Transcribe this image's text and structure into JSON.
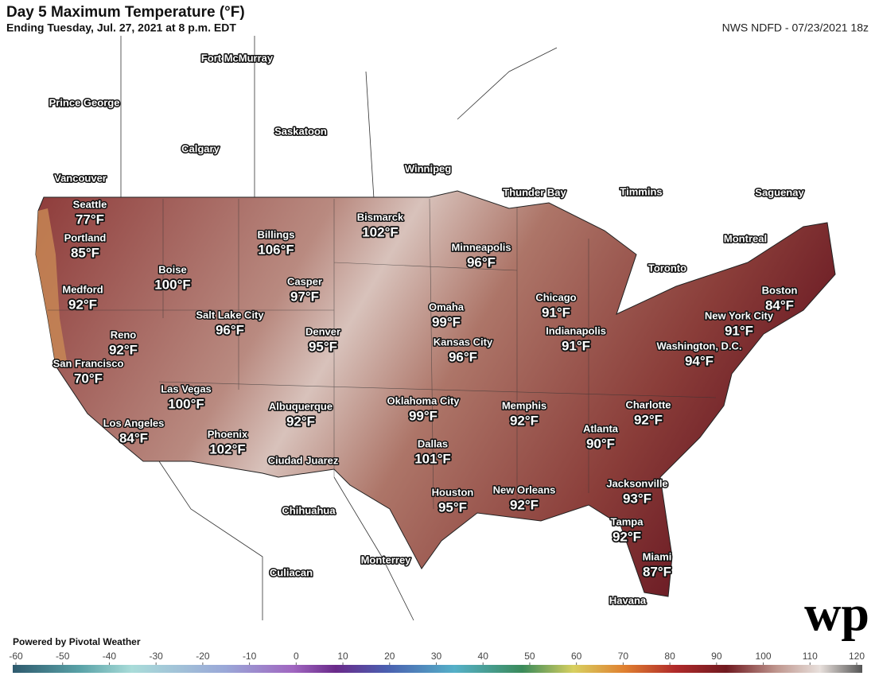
{
  "header": {
    "title": "Day 5 Maximum Temperature (°F)",
    "subtitle": "Ending Tuesday, Jul. 27, 2021 at 8 p.m. EDT",
    "source": "NWS NDFD - 07/23/2021 18z"
  },
  "credit": "Powered by Pivotal Weather",
  "logo": "wp",
  "cities": [
    {
      "name": "Seattle",
      "temp": "77°F"
    },
    {
      "name": "Portland",
      "temp": "85°F"
    },
    {
      "name": "Medford",
      "temp": "92°F"
    },
    {
      "name": "Boise",
      "temp": "100°F"
    },
    {
      "name": "Billings",
      "temp": "106°F"
    },
    {
      "name": "Bismarck",
      "temp": "102°F"
    },
    {
      "name": "Minneapolis",
      "temp": "96°F"
    },
    {
      "name": "Casper",
      "temp": "97°F"
    },
    {
      "name": "Salt Lake City",
      "temp": "96°F"
    },
    {
      "name": "Denver",
      "temp": "95°F"
    },
    {
      "name": "Reno",
      "temp": "92°F"
    },
    {
      "name": "San Francisco",
      "temp": "70°F"
    },
    {
      "name": "Las Vegas",
      "temp": "100°F"
    },
    {
      "name": "Omaha",
      "temp": "99°F"
    },
    {
      "name": "Kansas City",
      "temp": "96°F"
    },
    {
      "name": "Chicago",
      "temp": "91°F"
    },
    {
      "name": "Indianapolis",
      "temp": "91°F"
    },
    {
      "name": "New York City",
      "temp": "91°F"
    },
    {
      "name": "Boston",
      "temp": "84°F"
    },
    {
      "name": "Washington, D.C.",
      "temp": "94°F"
    },
    {
      "name": "Albuquerque",
      "temp": "92°F"
    },
    {
      "name": "Phoenix",
      "temp": "102°F"
    },
    {
      "name": "Los Angeles",
      "temp": "84°F"
    },
    {
      "name": "Oklahoma City",
      "temp": "99°F"
    },
    {
      "name": "Memphis",
      "temp": "92°F"
    },
    {
      "name": "Charlotte",
      "temp": "92°F"
    },
    {
      "name": "Atlanta",
      "temp": "90°F"
    },
    {
      "name": "Dallas",
      "temp": "101°F"
    },
    {
      "name": "Houston",
      "temp": "95°F"
    },
    {
      "name": "New Orleans",
      "temp": "92°F"
    },
    {
      "name": "Jacksonville",
      "temp": "93°F"
    },
    {
      "name": "Tampa",
      "temp": "92°F"
    },
    {
      "name": "Miami",
      "temp": "87°F"
    }
  ],
  "places": [
    "Fort McMurray",
    "Prince George",
    "Calgary",
    "Saskatoon",
    "Vancouver",
    "Winnipeg",
    "Thunder Bay",
    "Timmins",
    "Saguenay",
    "Montreal",
    "Toronto",
    "Ciudad Juarez",
    "Chihuahua",
    "Monterrey",
    "Culiacan",
    "Havana"
  ],
  "scale": {
    "ticks": [
      -60,
      -50,
      -40,
      -30,
      -20,
      -10,
      0,
      10,
      20,
      30,
      40,
      50,
      60,
      70,
      80,
      90,
      100,
      110,
      120
    ]
  }
}
